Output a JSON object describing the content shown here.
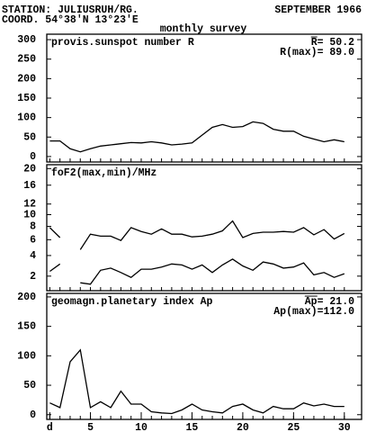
{
  "header": {
    "station": "STATION: JULIUSRUH/RG.",
    "date": "SEPTEMBER 1966",
    "coord": "COORD. 54°38'N 13°23'E",
    "subtitle": "monthly survey"
  },
  "chart_data": [
    {
      "type": "line",
      "title": "provis.sunspot number R",
      "annotations": [
        "R= 50.2",
        "R(max)= 89.0"
      ],
      "x": [
        1,
        2,
        3,
        4,
        5,
        6,
        7,
        8,
        9,
        10,
        11,
        12,
        13,
        14,
        15,
        16,
        17,
        18,
        19,
        20,
        21,
        22,
        23,
        24,
        25,
        26,
        27,
        28,
        29,
        30
      ],
      "xlim": [
        0.7,
        31.7
      ],
      "ylim": [
        -14,
        314
      ],
      "yticks": [
        0,
        50,
        100,
        150,
        200,
        250,
        300
      ],
      "series": [
        {
          "color": "#000000",
          "values": [
            40,
            40,
            20,
            12,
            20,
            27,
            30,
            33,
            36,
            35,
            38,
            35,
            30,
            32,
            35,
            55,
            75,
            82,
            75,
            77,
            89,
            85,
            70,
            65,
            65,
            52,
            45,
            38,
            43,
            38
          ]
        }
      ]
    },
    {
      "type": "line",
      "title": "foF2(max,min)/MHz",
      "yscale": "sqrt",
      "x": [
        1,
        2,
        3,
        4,
        5,
        6,
        7,
        8,
        9,
        10,
        11,
        12,
        13,
        14,
        15,
        16,
        17,
        18,
        19,
        20,
        21,
        22,
        23,
        24,
        25,
        26,
        27,
        28,
        29,
        30
      ],
      "xlim": [
        0.7,
        31.7
      ],
      "ylim": [
        1,
        21
      ],
      "yticks": [
        2,
        4,
        6,
        8,
        10,
        12,
        16,
        20
      ],
      "series": [
        {
          "color": "#000000",
          "values": [
            7.8,
            6.3,
            null,
            4.7,
            6.8,
            6.5,
            6.5,
            5.9,
            7.8,
            7.2,
            6.8,
            7.6,
            6.8,
            6.8,
            6.4,
            6.5,
            6.8,
            7.3,
            8.9,
            6.3,
            6.9,
            7.1,
            7.1,
            7.2,
            7.1,
            7.8,
            6.7,
            7.5,
            6.1,
            6.9
          ]
        },
        {
          "color": "#000000",
          "values": [
            2.4,
            3.1,
            null,
            1.5,
            1.4,
            2.5,
            2.7,
            2.3,
            1.9,
            2.6,
            2.6,
            2.8,
            3.1,
            3.0,
            2.6,
            3.0,
            2.3,
            3.0,
            3.6,
            2.9,
            2.5,
            3.3,
            3.1,
            2.7,
            2.8,
            3.2,
            2.1,
            2.3,
            1.9,
            2.2
          ]
        }
      ]
    },
    {
      "type": "line",
      "title": "geomagn.planetary index Ap",
      "annotations": [
        "Ap= 21.0",
        "Ap(max)=112.0"
      ],
      "x": [
        1,
        2,
        3,
        4,
        5,
        6,
        7,
        8,
        9,
        10,
        11,
        12,
        13,
        14,
        15,
        16,
        17,
        18,
        19,
        20,
        21,
        22,
        23,
        24,
        25,
        26,
        27,
        28,
        29,
        30
      ],
      "xlim": [
        0.7,
        31.7
      ],
      "xticks": [
        {
          "value": 1,
          "label": "d"
        },
        5,
        10,
        15,
        20,
        25,
        30
      ],
      "ylim": [
        -8,
        206
      ],
      "yticks": [
        0,
        50,
        100,
        150,
        200
      ],
      "series": [
        {
          "color": "#000000",
          "values": [
            20,
            12,
            90,
            110,
            12,
            22,
            12,
            40,
            18,
            18,
            5,
            3,
            2,
            8,
            18,
            8,
            5,
            3,
            14,
            18,
            8,
            3,
            14,
            10,
            10,
            20,
            15,
            18,
            14,
            14
          ]
        }
      ]
    }
  ]
}
